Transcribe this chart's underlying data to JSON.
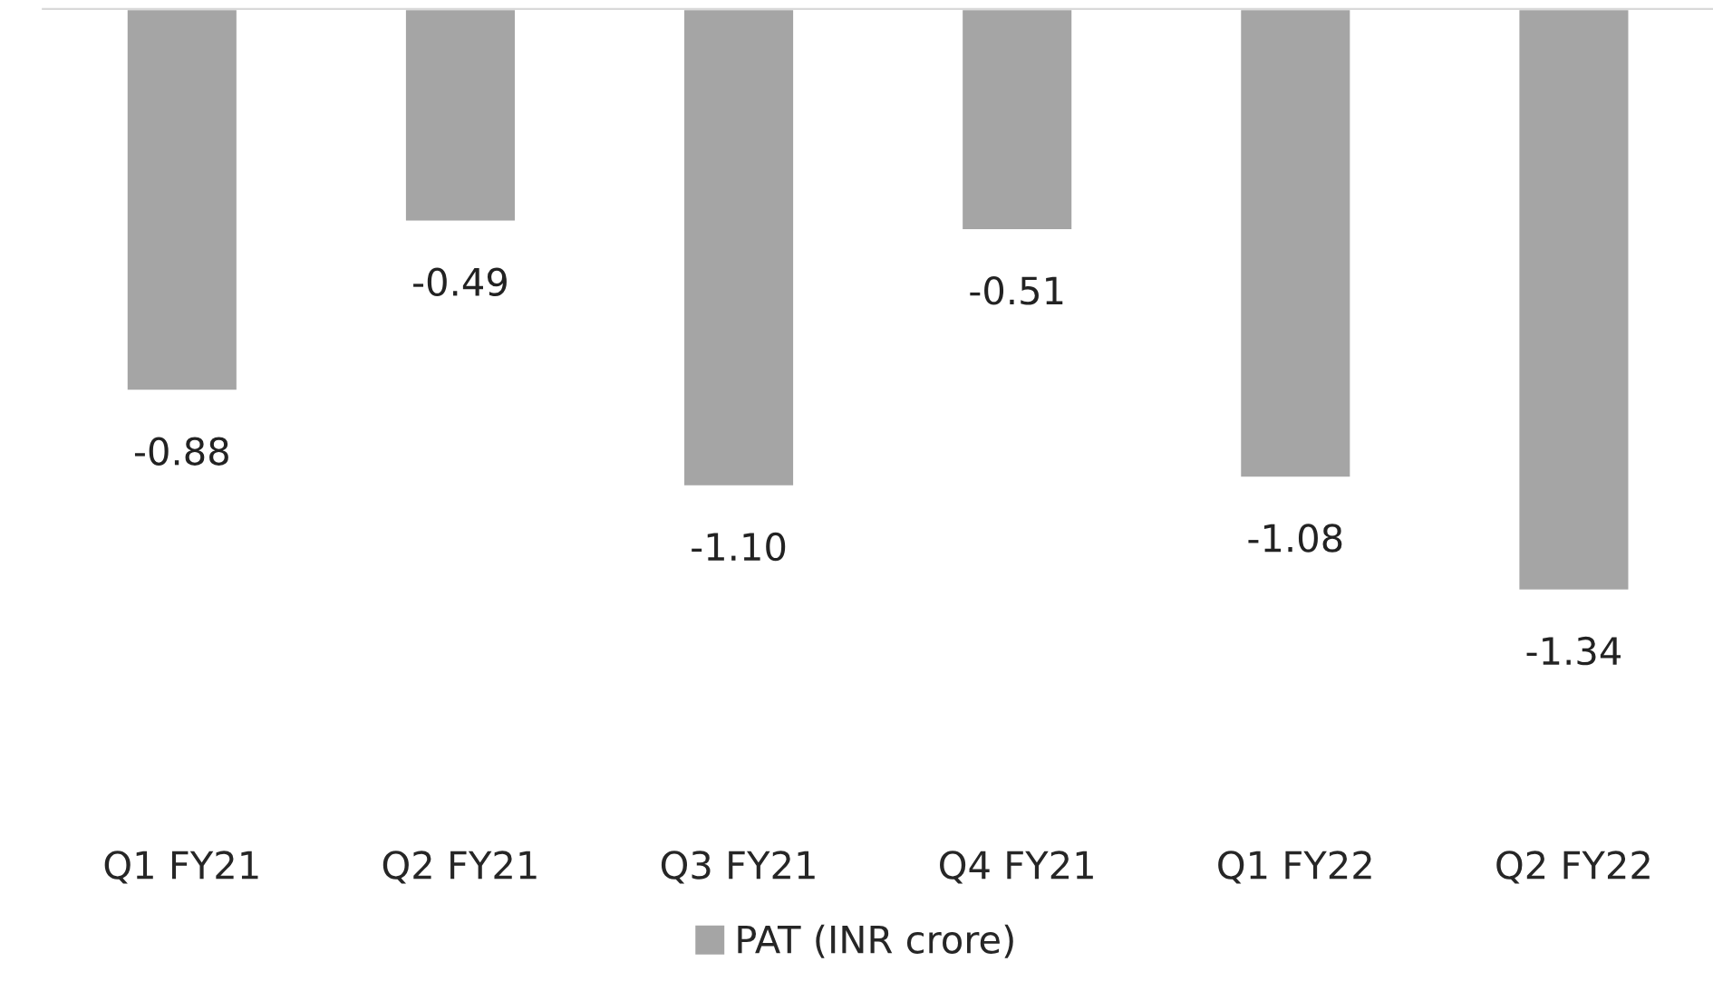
{
  "chart_data": {
    "type": "bar",
    "categories": [
      "Q1 FY21",
      "Q2 FY21",
      "Q3 FY21",
      "Q4 FY21",
      "Q1 FY22",
      "Q2 FY22"
    ],
    "series": [
      {
        "name": "PAT (INR crore)",
        "color": "#a5a5a5",
        "values": [
          -0.88,
          -0.49,
          -1.1,
          -0.51,
          -1.08,
          -1.34
        ],
        "value_labels": [
          "-0.88",
          "-0.49",
          "-1.10",
          "-0.51",
          "-1.08",
          "-1.34"
        ]
      }
    ],
    "legend": "bottom",
    "grid": false
  }
}
